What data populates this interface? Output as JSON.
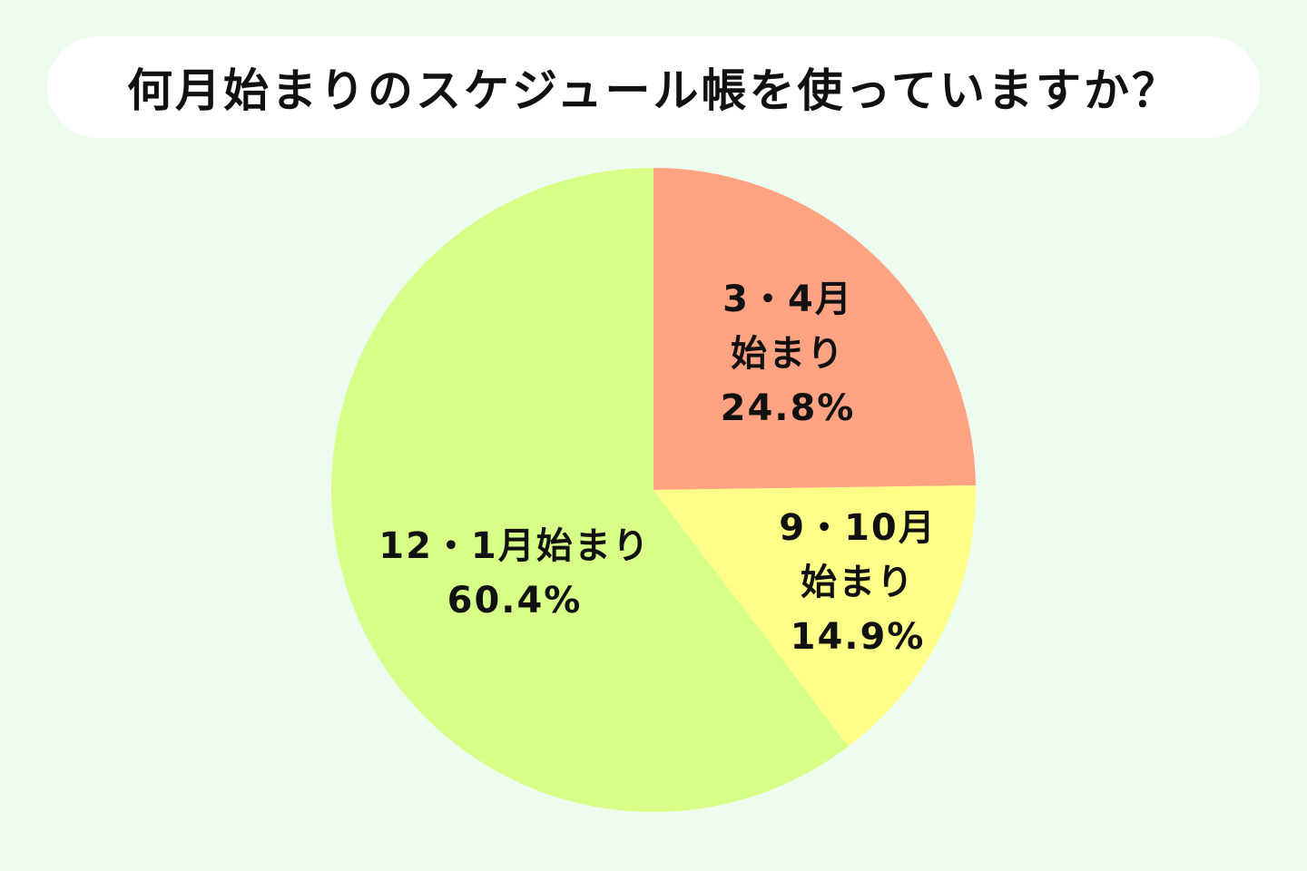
{
  "chart_data": {
    "type": "pie",
    "title": "何月始まりのスケジュール帳を使っていますか？",
    "categories": [
      "3・4月始まり",
      "9・10月始まり",
      "12・1月始まり"
    ],
    "values": [
      24.8,
      14.9,
      60.4
    ],
    "value_labels": [
      "24.8%",
      "14.9%",
      "60.4%"
    ],
    "colors": [
      "#ffa383",
      "#ffff88",
      "#d7ff88"
    ]
  }
}
